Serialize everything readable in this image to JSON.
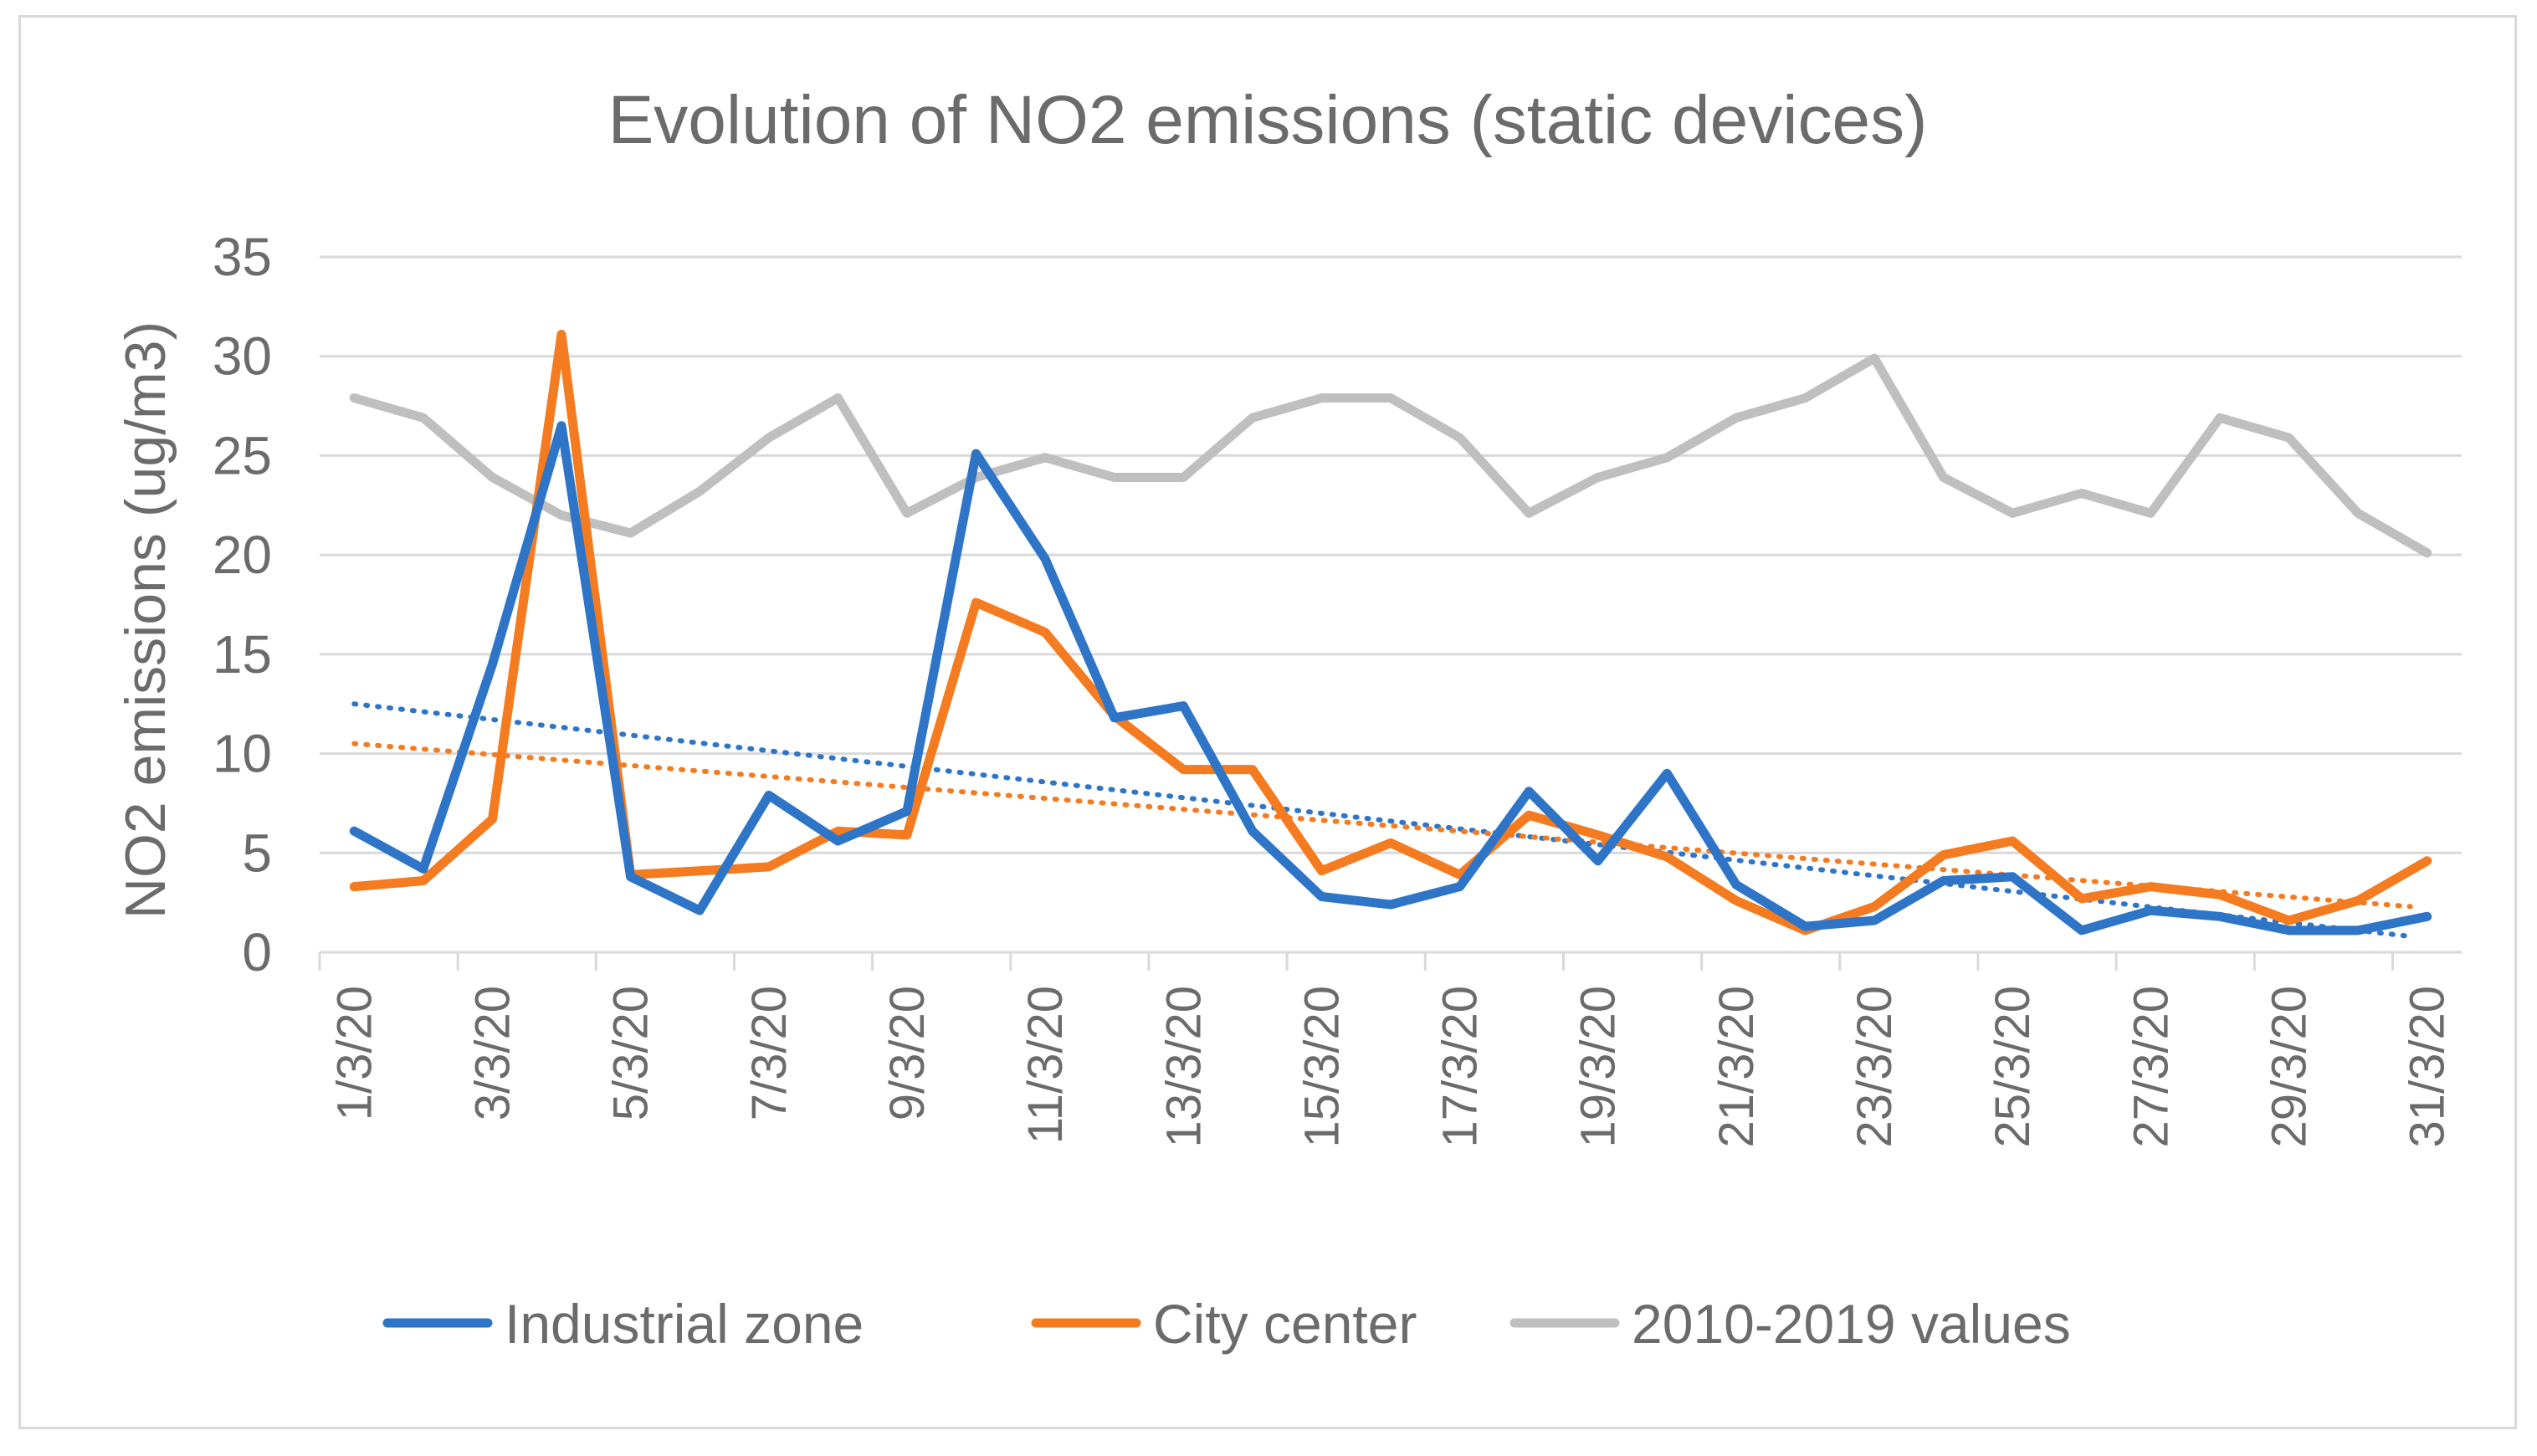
{
  "chart_data": {
    "type": "line",
    "title": "Evolution of NO2 emissions (static devices)",
    "xlabel": "",
    "ylabel": "NO2 emissions (ug/m3)",
    "ylim": [
      0,
      35
    ],
    "yticks": [
      0,
      5,
      10,
      15,
      20,
      25,
      30,
      35
    ],
    "grid": true,
    "legend_position": "bottom",
    "x": [
      "1/3/20",
      "2/3/20",
      "3/3/20",
      "4/3/20",
      "5/3/20",
      "6/3/20",
      "7/3/20",
      "8/3/20",
      "9/3/20",
      "10/3/20",
      "11/3/20",
      "12/3/20",
      "13/3/20",
      "14/3/20",
      "15/3/20",
      "16/3/20",
      "17/3/20",
      "18/3/20",
      "19/3/20",
      "20/3/20",
      "21/3/20",
      "22/3/20",
      "23/3/20",
      "24/3/20",
      "25/3/20",
      "26/3/20",
      "27/3/20",
      "28/3/20",
      "29/3/20",
      "30/3/20",
      "31/3/20"
    ],
    "xtick_labels": [
      "1/3/20",
      "3/3/20",
      "5/3/20",
      "7/3/20",
      "9/3/20",
      "11/3/20",
      "13/3/20",
      "15/3/20",
      "17/3/20",
      "19/3/20",
      "21/3/20",
      "23/3/20",
      "25/3/20",
      "27/3/20",
      "29/3/20",
      "31/3/20"
    ],
    "series": [
      {
        "name": "Industrial zone",
        "color": "#2e75c8",
        "values": [
          6.1,
          4.2,
          14.5,
          26.5,
          3.8,
          2.1,
          7.9,
          5.6,
          7.1,
          25.1,
          19.8,
          11.8,
          12.4,
          6.1,
          2.8,
          2.4,
          3.3,
          8.1,
          4.6,
          9.0,
          3.4,
          1.3,
          1.6,
          3.6,
          3.8,
          1.1,
          2.1,
          1.8,
          1.1,
          1.1,
          1.8
        ],
        "trendline": {
          "type": "linear",
          "start": 12.5,
          "end": 0.8
        }
      },
      {
        "name": "City center",
        "color": "#f47b20",
        "values": [
          3.3,
          3.6,
          6.7,
          31.1,
          3.9,
          4.1,
          4.3,
          6.1,
          5.9,
          17.6,
          16.1,
          11.9,
          9.2,
          9.2,
          4.1,
          5.5,
          3.9,
          6.9,
          5.9,
          4.8,
          2.6,
          1.1,
          2.3,
          4.9,
          5.6,
          2.7,
          3.3,
          2.9,
          1.6,
          2.6,
          4.6
        ],
        "trendline": {
          "type": "linear",
          "start": 10.5,
          "end": 2.3
        }
      },
      {
        "name": "2010-2019 values",
        "color": "#bfbfbf",
        "values": [
          27.9,
          26.9,
          23.9,
          22.0,
          21.1,
          23.2,
          25.9,
          27.9,
          22.1,
          23.9,
          24.9,
          23.9,
          23.9,
          26.9,
          27.9,
          27.9,
          25.9,
          22.1,
          23.9,
          24.9,
          26.9,
          27.9,
          29.9,
          23.9,
          22.1,
          23.1,
          22.1,
          26.9,
          25.9,
          22.1,
          20.1
        ]
      }
    ]
  }
}
